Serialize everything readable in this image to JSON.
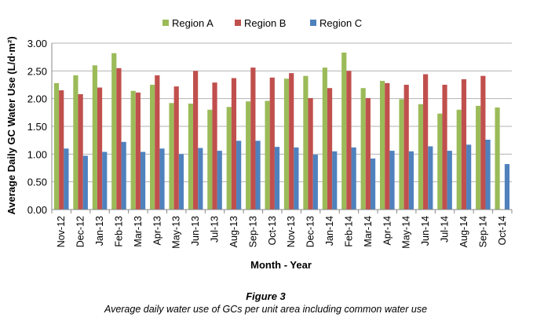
{
  "chart_data": {
    "type": "bar",
    "title": "",
    "xlabel": "Month - Year",
    "ylabel": "Average Daily GC Water Use (L/d·m²)",
    "ylim": [
      0,
      3.0
    ],
    "yticks": [
      "0.00",
      "0.50",
      "1.00",
      "1.50",
      "2.00",
      "2.50",
      "3.00"
    ],
    "grid": true,
    "legend_position": "top",
    "categories": [
      "Nov-12",
      "Dec-12",
      "Jan-13",
      "Feb-13",
      "Mar-13",
      "Apr-13",
      "May-13",
      "Jun-13",
      "Jul-13",
      "Aug-13",
      "Sep-13",
      "Oct-13",
      "Nov-13",
      "Dec-13",
      "Jan-14",
      "Feb-14",
      "Mar-14",
      "Apr-14",
      "May-14",
      "Jun-14",
      "Jul-14",
      "Aug-14",
      "Sep-14",
      "Oct-14"
    ],
    "series": [
      {
        "name": "Region A",
        "color": "#9BBB59",
        "values": [
          2.28,
          2.42,
          2.6,
          2.82,
          2.14,
          2.25,
          1.92,
          1.91,
          1.8,
          1.85,
          1.95,
          1.96,
          2.36,
          2.41,
          2.56,
          2.83,
          2.19,
          2.32,
          1.99,
          1.9,
          1.73,
          1.8,
          1.87,
          1.84
        ]
      },
      {
        "name": "Region B",
        "color": "#C0504D",
        "values": [
          2.15,
          2.08,
          2.2,
          2.55,
          2.11,
          2.42,
          2.22,
          2.5,
          2.29,
          2.37,
          2.56,
          2.38,
          2.46,
          2.01,
          2.19,
          2.5,
          2.01,
          2.28,
          2.25,
          2.44,
          2.25,
          2.35,
          2.41,
          null
        ]
      },
      {
        "name": "Region C",
        "color": "#4F81BD",
        "values": [
          1.1,
          0.97,
          1.04,
          1.22,
          1.04,
          1.1,
          1.0,
          1.11,
          1.06,
          1.24,
          1.24,
          1.13,
          1.12,
          0.99,
          1.05,
          1.12,
          0.92,
          1.06,
          1.05,
          1.14,
          1.06,
          1.17,
          1.26,
          0.82
        ]
      }
    ]
  },
  "figure": {
    "label": "Figure 3",
    "caption": "Average daily water use of GCs per unit area including common water use"
  }
}
